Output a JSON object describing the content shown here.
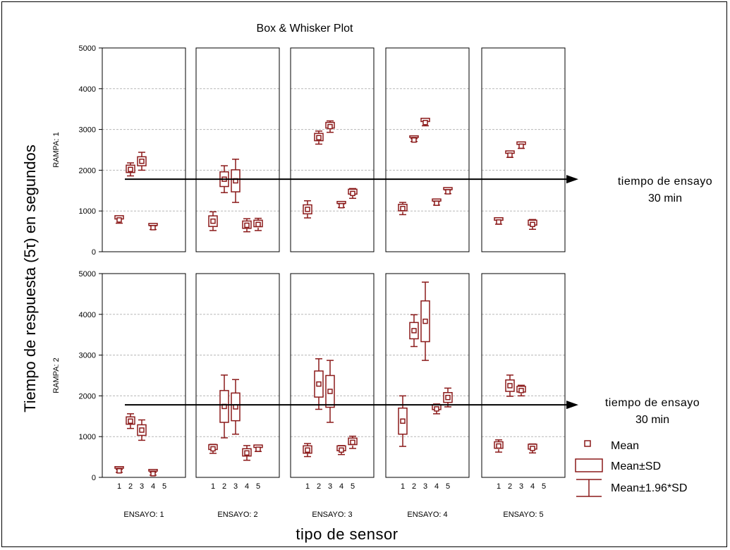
{
  "colors": {
    "box": "#8b1a1a",
    "grid": "#b8b8b8",
    "axis": "#000000",
    "background": "#ffffff"
  },
  "chart_data": {
    "type": "box",
    "title": "Box & Whisker Plot",
    "xlabel": "tipo de sensor",
    "ylabel": "Tiempo de respuesta (5τ) en segundos",
    "ylim": [
      0,
      5000
    ],
    "yticks": [
      0,
      1000,
      2000,
      3000,
      4000,
      5000
    ],
    "xticks": [
      "1",
      "2",
      "3",
      "4",
      "5"
    ],
    "grid": true,
    "panel_columns": [
      "ENSAYO: 1",
      "ENSAYO: 2",
      "ENSAYO: 3",
      "ENSAYO: 4",
      "ENSAYO: 5"
    ],
    "panel_rows": [
      "RAMPA: 1",
      "RAMPA: 2"
    ],
    "reference_line": {
      "value": 1780,
      "label": "tiempo de ensayo",
      "sublabel": "30 min"
    },
    "legend": [
      "Mean",
      "Mean±SD",
      "Mean±1.96*SD"
    ],
    "legend_position": "bottom-right",
    "series": [
      {
        "rampa": "RAMPA: 1",
        "panels": [
          {
            "ensayo": "ENSAYO: 1",
            "points": [
              {
                "sensor": 1,
                "mean": 780,
                "sd": 40,
                "w": 80
              },
              {
                "sensor": 2,
                "mean": 2020,
                "sd": 90,
                "w": 160
              },
              {
                "sensor": 3,
                "mean": 2220,
                "sd": 110,
                "w": 220
              },
              {
                "sensor": 4,
                "mean": 590,
                "sd": 25,
                "w": 45
              }
            ]
          },
          {
            "ensayo": "ENSAYO: 2",
            "points": [
              {
                "sensor": 1,
                "mean": 750,
                "sd": 130,
                "w": 230
              },
              {
                "sensor": 2,
                "mean": 1780,
                "sd": 180,
                "w": 330
              },
              {
                "sensor": 3,
                "mean": 1740,
                "sd": 270,
                "w": 530
              },
              {
                "sensor": 4,
                "mean": 650,
                "sd": 90,
                "w": 160
              },
              {
                "sensor": 5,
                "mean": 670,
                "sd": 80,
                "w": 150
              }
            ]
          },
          {
            "ensayo": "ENSAYO: 3",
            "points": [
              {
                "sensor": 1,
                "mean": 1040,
                "sd": 110,
                "w": 210
              },
              {
                "sensor": 2,
                "mean": 2800,
                "sd": 90,
                "w": 160
              },
              {
                "sensor": 3,
                "mean": 3070,
                "sd": 70,
                "w": 140
              },
              {
                "sensor": 4,
                "mean": 1130,
                "sd": 25,
                "w": 45
              },
              {
                "sensor": 5,
                "mean": 1430,
                "sd": 60,
                "w": 120
              }
            ]
          },
          {
            "ensayo": "ENSAYO: 4",
            "points": [
              {
                "sensor": 1,
                "mean": 1060,
                "sd": 80,
                "w": 150
              },
              {
                "sensor": 2,
                "mean": 2740,
                "sd": 20,
                "w": 35
              },
              {
                "sensor": 3,
                "mean": 3170,
                "sd": 40,
                "w": 80
              },
              {
                "sensor": 4,
                "mean": 1190,
                "sd": 25,
                "w": 45
              },
              {
                "sensor": 5,
                "mean": 1470,
                "sd": 25,
                "w": 45
              }
            ]
          },
          {
            "ensayo": "ENSAYO: 5",
            "points": [
              {
                "sensor": 1,
                "mean": 730,
                "sd": 30,
                "w": 55
              },
              {
                "sensor": 2,
                "mean": 2370,
                "sd": 30,
                "w": 55
              },
              {
                "sensor": 3,
                "mean": 2590,
                "sd": 30,
                "w": 55
              },
              {
                "sensor": 4,
                "mean": 670,
                "sd": 60,
                "w": 120
              }
            ]
          }
        ]
      },
      {
        "rampa": "RAMPA: 2",
        "panels": [
          {
            "ensayo": "ENSAYO: 1",
            "points": [
              {
                "sensor": 1,
                "mean": 160,
                "sd": 20,
                "w": 35
              },
              {
                "sensor": 2,
                "mean": 1380,
                "sd": 90,
                "w": 180
              },
              {
                "sensor": 3,
                "mean": 1160,
                "sd": 130,
                "w": 250
              },
              {
                "sensor": 4,
                "mean": 90,
                "sd": 20,
                "w": 35
              }
            ]
          },
          {
            "ensayo": "ENSAYO: 2",
            "points": [
              {
                "sensor": 1,
                "mean": 700,
                "sd": 60,
                "w": 110
              },
              {
                "sensor": 2,
                "mean": 1740,
                "sd": 390,
                "w": 770
              },
              {
                "sensor": 3,
                "mean": 1730,
                "sd": 340,
                "w": 670
              },
              {
                "sensor": 4,
                "mean": 600,
                "sd": 90,
                "w": 180
              },
              {
                "sensor": 5,
                "mean": 690,
                "sd": 30,
                "w": 55
              }
            ]
          },
          {
            "ensayo": "ENSAYO: 3",
            "points": [
              {
                "sensor": 1,
                "mean": 670,
                "sd": 90,
                "w": 160
              },
              {
                "sensor": 2,
                "mean": 2290,
                "sd": 320,
                "w": 620
              },
              {
                "sensor": 3,
                "mean": 2110,
                "sd": 390,
                "w": 760
              },
              {
                "sensor": 4,
                "mean": 670,
                "sd": 60,
                "w": 110
              },
              {
                "sensor": 5,
                "mean": 860,
                "sd": 80,
                "w": 150
              }
            ]
          },
          {
            "ensayo": "ENSAYO: 4",
            "points": [
              {
                "sensor": 1,
                "mean": 1380,
                "sd": 320,
                "w": 620
              },
              {
                "sensor": 2,
                "mean": 3600,
                "sd": 200,
                "w": 390
              },
              {
                "sensor": 3,
                "mean": 3830,
                "sd": 500,
                "w": 960
              },
              {
                "sensor": 4,
                "mean": 1680,
                "sd": 60,
                "w": 120
              },
              {
                "sensor": 5,
                "mean": 1960,
                "sd": 120,
                "w": 230
              }
            ]
          },
          {
            "ensayo": "ENSAYO: 5",
            "points": [
              {
                "sensor": 1,
                "mean": 770,
                "sd": 80,
                "w": 150
              },
              {
                "sensor": 2,
                "mean": 2250,
                "sd": 140,
                "w": 260
              },
              {
                "sensor": 3,
                "mean": 2130,
                "sd": 70,
                "w": 130
              },
              {
                "sensor": 4,
                "mean": 710,
                "sd": 60,
                "w": 110
              }
            ]
          }
        ]
      }
    ]
  }
}
